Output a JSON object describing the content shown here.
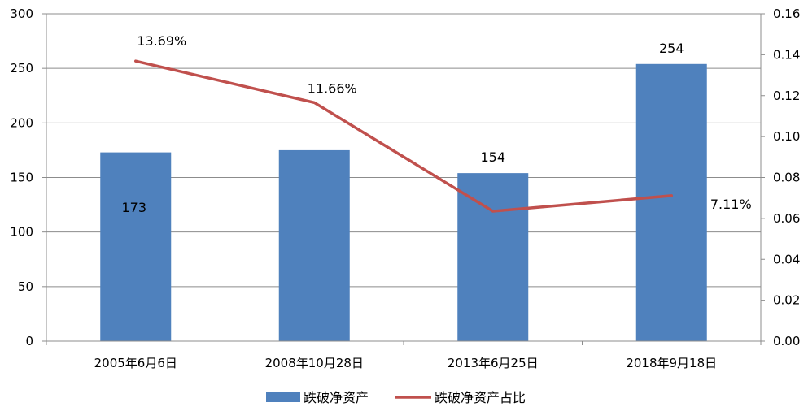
{
  "chart_data": {
    "type": "bar",
    "categories": [
      "2005年6月6日",
      "2008年10月28日",
      "2013年6月25日",
      "2018年9月18日"
    ],
    "series": [
      {
        "name": "跌破净资产",
        "type": "bar",
        "axis": "left",
        "values": [
          173,
          175,
          154,
          254
        ],
        "data_labels": [
          "173",
          "",
          "154",
          "254"
        ],
        "color": "#4F81BD"
      },
      {
        "name": "跌破净资产占比",
        "type": "line",
        "axis": "right",
        "values": [
          0.1369,
          0.1166,
          0.0635,
          0.0711
        ],
        "data_labels": [
          "13.69%",
          "11.66%",
          "",
          "7.11%"
        ],
        "color": "#C0504D"
      }
    ],
    "y_left": {
      "min": 0,
      "max": 300,
      "ticks": [
        "0",
        "50",
        "100",
        "150",
        "200",
        "250",
        "300"
      ]
    },
    "y_right": {
      "min": 0,
      "max": 0.16,
      "ticks": [
        "0.00",
        "0.02",
        "0.04",
        "0.06",
        "0.08",
        "0.10",
        "0.12",
        "0.14",
        "0.16"
      ]
    },
    "grid": true,
    "legend_position": "bottom"
  }
}
